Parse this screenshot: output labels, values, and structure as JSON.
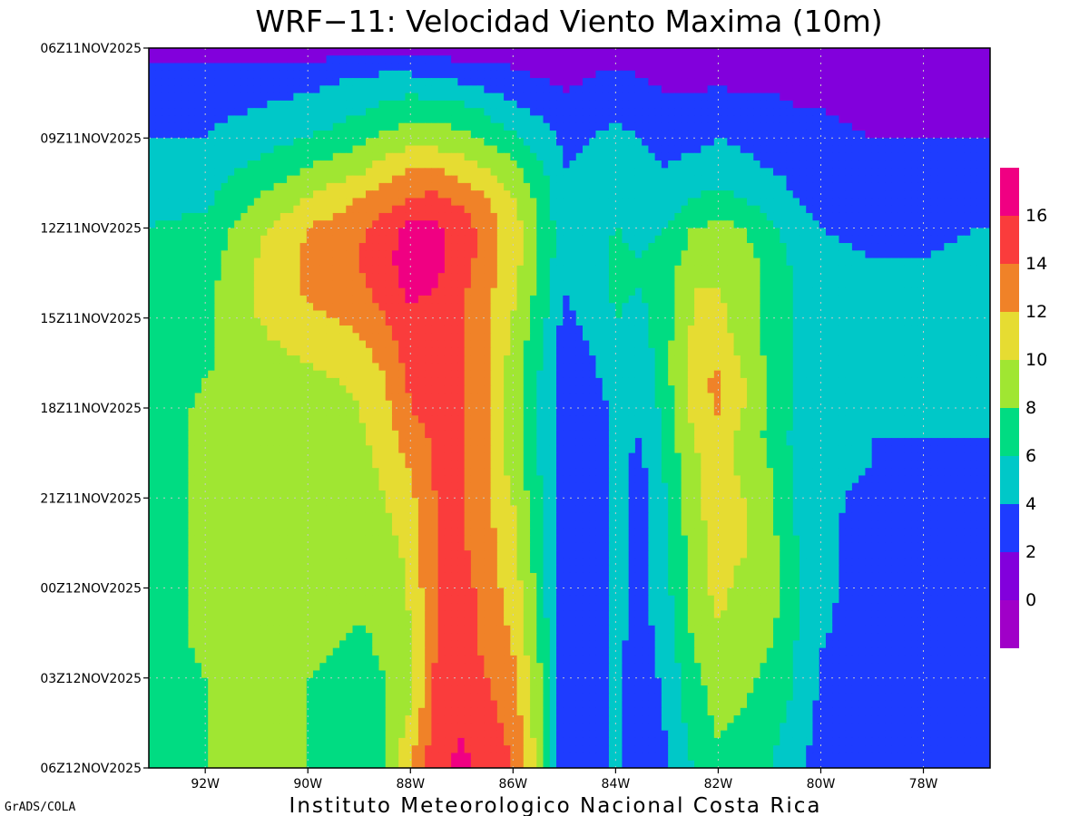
{
  "chart_data": {
    "type": "heatmap",
    "title": "WRF−11: Velocidad  Viento Maxima (10m)",
    "xlabel": "",
    "ylabel": "",
    "x_ticks": [
      "92W",
      "90W",
      "88W",
      "86W",
      "84W",
      "82W",
      "80W",
      "78W"
    ],
    "x_tick_values": [
      -92,
      -90,
      -88,
      -86,
      -84,
      -82,
      -80,
      -78
    ],
    "xlim": [
      -93.1,
      -76.7
    ],
    "y_ticks": [
      "06Z11NOV2025",
      "09Z11NOV2025",
      "12Z11NOV2025",
      "15Z11NOV2025",
      "18Z11NOV2025",
      "21Z11NOV2025",
      "00Z12NOV2025",
      "03Z12NOV2025",
      "06Z12NOV2025"
    ],
    "y_tick_hours": [
      0,
      3,
      6,
      9,
      12,
      15,
      18,
      21,
      24
    ],
    "ylim_hours": [
      0,
      24
    ],
    "grid": true,
    "colorbar": {
      "placement": "right",
      "labels": [
        "16",
        "14",
        "12",
        "10",
        "8",
        "6",
        "4",
        "2",
        "0"
      ],
      "levels": [
        0,
        2,
        4,
        6,
        8,
        10,
        12,
        14,
        16
      ],
      "colors": [
        "#a000c8",
        "#8200dc",
        "#1e3cff",
        "#00c8c8",
        "#00dc82",
        "#a0e632",
        "#e6dc32",
        "#f08228",
        "#fa3c3c",
        "#f00082"
      ]
    },
    "field": {
      "units": "m/s",
      "x_nodes": [
        -93.1,
        -92,
        -91,
        -90,
        -89,
        -88.5,
        -88,
        -87.5,
        -87,
        -86.5,
        -86,
        -85.5,
        -85,
        -84.5,
        -84,
        -83.5,
        -83,
        -82.5,
        -82,
        -81.5,
        -81,
        -80.5,
        -80,
        -79,
        -78,
        -77,
        -76.7
      ],
      "rows": [
        {
          "hour": 0,
          "values": [
            1,
            1,
            1,
            1,
            1,
            1,
            1,
            1,
            1,
            1,
            1,
            1,
            1,
            1,
            1,
            1,
            1,
            1,
            1,
            1,
            1,
            1,
            1,
            1,
            1,
            1,
            1
          ]
        },
        {
          "hour": 1,
          "values": [
            3,
            3,
            3,
            3.5,
            4,
            4.5,
            4.5,
            4,
            3.5,
            3,
            2.5,
            2,
            1.5,
            2,
            2.5,
            2,
            1.5,
            1.5,
            1.5,
            1.5,
            1.5,
            1.5,
            1,
            1,
            1,
            1,
            1
          ]
        },
        {
          "hour": 2,
          "values": [
            3.5,
            3.5,
            4,
            4.5,
            5.5,
            6.5,
            7,
            7,
            6.5,
            5.5,
            4.5,
            3.5,
            2.5,
            3,
            3.5,
            3,
            2.5,
            2.5,
            3,
            2.5,
            2.5,
            2,
            2,
            1.5,
            1.5,
            1.5,
            1.5
          ]
        },
        {
          "hour": 3,
          "values": [
            4,
            4,
            5,
            6,
            7.5,
            8.5,
            9,
            9,
            8.5,
            7.5,
            6.5,
            5,
            3.5,
            4,
            4.5,
            4,
            3.5,
            3.5,
            4,
            3.5,
            3,
            3,
            2.5,
            2,
            2,
            2,
            2
          ]
        },
        {
          "hour": 4,
          "values": [
            5,
            5,
            6.5,
            8,
            9.5,
            11,
            12,
            12,
            11,
            10,
            8.5,
            6.5,
            4,
            4.5,
            5,
            4.5,
            4,
            4.5,
            5,
            4.5,
            4,
            3.5,
            3,
            2.5,
            2.5,
            3,
            3
          ]
        },
        {
          "hour": 5,
          "values": [
            5.5,
            5.5,
            8,
            10,
            12,
            13,
            14,
            14.5,
            13.5,
            12,
            10,
            7.5,
            4.5,
            5,
            5.5,
            5,
            5,
            6,
            6.5,
            6,
            5,
            4,
            3.5,
            3,
            3,
            3.5,
            3.5
          ]
        },
        {
          "hour": 6,
          "values": [
            6,
            6.5,
            9.5,
            12,
            13.5,
            15,
            16.5,
            16.5,
            15,
            13,
            11,
            8,
            4.5,
            5,
            6,
            5.5,
            6,
            8,
            8.5,
            8,
            6.5,
            5,
            4,
            3.5,
            3.5,
            4,
            4
          ]
        },
        {
          "hour": 7,
          "values": [
            6.5,
            7,
            10,
            12.5,
            14,
            15.5,
            17,
            16.5,
            15,
            13,
            11,
            8,
            4.5,
            5,
            6.5,
            6,
            7,
            9,
            9.5,
            9,
            7,
            5.5,
            4.5,
            4,
            4,
            4.5,
            4.5
          ]
        },
        {
          "hour": 8,
          "values": [
            6.5,
            7.5,
            10,
            12.5,
            13.5,
            15,
            16.5,
            16,
            14.5,
            12.5,
            10.5,
            7.5,
            4,
            5,
            6.5,
            6,
            7.5,
            10,
            10,
            9,
            7.5,
            6,
            5,
            4.5,
            4.5,
            4.5,
            4.5
          ]
        },
        {
          "hour": 9,
          "values": [
            6.5,
            7.5,
            10,
            11.5,
            12.5,
            14,
            15.5,
            15.5,
            14,
            12,
            10,
            7,
            3.5,
            4.5,
            6,
            5.5,
            7.5,
            10,
            10.5,
            9,
            7.5,
            6,
            5,
            4.5,
            4.5,
            4.5,
            4.5
          ]
        },
        {
          "hour": 10,
          "values": [
            6.5,
            7.5,
            9.5,
            10.5,
            11.5,
            13,
            15,
            15,
            14,
            12,
            9.5,
            6.5,
            3,
            4,
            5.5,
            5,
            7.5,
            10.5,
            11,
            9.5,
            7.5,
            6,
            5,
            4.5,
            4.5,
            4.5,
            4.5
          ]
        },
        {
          "hour": 11,
          "values": [
            6.5,
            8,
            9,
            9.5,
            10.5,
            12,
            14.5,
            15,
            14,
            12,
            9,
            6,
            3,
            3.5,
            5,
            4.5,
            7.5,
            11,
            12.5,
            10,
            7.5,
            6,
            5,
            4.5,
            4.5,
            4.5,
            4.5
          ]
        },
        {
          "hour": 12,
          "values": [
            6.5,
            8.5,
            9,
            9,
            10,
            11.5,
            14,
            15,
            14,
            12,
            9,
            6,
            3,
            3,
            4.5,
            4,
            7,
            10.5,
            12.5,
            10,
            7.5,
            6,
            5,
            4.5,
            4,
            4,
            4
          ]
        },
        {
          "hour": 13,
          "values": [
            6.5,
            8.5,
            9,
            9,
            9.5,
            11,
            13,
            14.5,
            14,
            12,
            9,
            6,
            3,
            3,
            4.5,
            4,
            7,
            10,
            11,
            9.5,
            7.5,
            5.5,
            4.5,
            4,
            4,
            4,
            4
          ]
        },
        {
          "hour": 14,
          "values": [
            6.5,
            8.5,
            9,
            9,
            9,
            10.5,
            12,
            14.5,
            14,
            12,
            9,
            6,
            2.5,
            3,
            4.5,
            3.5,
            6.5,
            9.5,
            10.5,
            9.5,
            8,
            6,
            4.5,
            4,
            3.5,
            3.5,
            3.5
          ]
        },
        {
          "hour": 15,
          "values": [
            6.5,
            8.5,
            9,
            9,
            9,
            10,
            11.5,
            14,
            14,
            12.5,
            10,
            6.5,
            2.5,
            3,
            4.5,
            3.5,
            6,
            9.5,
            11.5,
            10,
            8.5,
            6,
            4.5,
            3.5,
            3,
            3,
            3
          ]
        },
        {
          "hour": 16,
          "values": [
            6.5,
            8.5,
            9,
            9,
            9,
            9.5,
            11,
            14,
            14,
            12.5,
            10.5,
            7,
            2.5,
            3,
            4.5,
            3.5,
            6,
            9,
            11,
            10,
            8.5,
            6,
            4.5,
            3,
            3,
            3,
            3
          ]
        },
        {
          "hour": 17,
          "values": [
            6.5,
            8.5,
            9,
            9,
            8.5,
            9,
            10.5,
            14,
            14.5,
            13,
            11,
            7,
            2.5,
            3,
            4.5,
            3.5,
            5.5,
            9,
            10.5,
            10,
            9,
            6.5,
            4.5,
            3,
            2.5,
            2.5,
            2.5
          ]
        },
        {
          "hour": 18,
          "values": [
            6.5,
            8.5,
            9,
            9,
            8.5,
            9,
            10.5,
            14,
            15,
            13,
            11,
            7.5,
            2.5,
            3,
            4.5,
            3.5,
            5.5,
            9,
            10.5,
            9.5,
            9,
            6.5,
            4.5,
            3,
            2.5,
            2.5,
            2.5
          ]
        },
        {
          "hour": 19,
          "values": [
            6.5,
            8.5,
            9,
            9,
            8,
            8.5,
            10,
            14,
            15,
            13,
            11.5,
            7.5,
            2.5,
            3,
            4.5,
            3.5,
            5,
            8.5,
            10,
            9.5,
            8.5,
            6.5,
            4.5,
            2.5,
            2.5,
            2.5,
            2.5
          ]
        },
        {
          "hour": 20,
          "values": [
            6.5,
            8.5,
            9,
            8.5,
            7.5,
            8.5,
            10,
            14,
            15,
            13.5,
            12,
            8,
            2.5,
            3,
            4.5,
            3,
            5,
            8,
            9.5,
            9,
            8,
            6,
            4,
            2.5,
            2.5,
            2.5,
            2.5
          ]
        },
        {
          "hour": 21,
          "values": [
            6.5,
            8,
            8.5,
            8,
            7,
            8,
            10,
            14.5,
            15,
            14,
            12.5,
            8.5,
            2.5,
            3,
            4.5,
            3,
            4.5,
            7.5,
            9,
            8.5,
            7.5,
            6,
            4,
            2.5,
            2.5,
            2.5,
            2.5
          ]
        },
        {
          "hour": 22,
          "values": [
            6.5,
            8,
            8.5,
            8,
            7,
            8,
            10,
            14.5,
            15.5,
            14.5,
            13,
            9,
            2.5,
            3,
            4.5,
            3,
            4.5,
            7,
            8.5,
            8,
            7,
            5.5,
            3.5,
            2.5,
            2.5,
            2.5,
            2.5
          ]
        },
        {
          "hour": 23,
          "values": [
            6.5,
            8,
            8.5,
            8,
            7,
            8,
            11,
            15,
            16,
            15,
            13.5,
            9,
            2.5,
            3,
            4.5,
            3,
            4,
            6.5,
            8,
            7.5,
            6.5,
            5,
            3.5,
            2.5,
            2.5,
            2.5,
            2.5
          ]
        },
        {
          "hour": 24,
          "values": [
            6.5,
            8,
            8.5,
            8,
            7,
            8,
            12,
            15.5,
            16.5,
            15.5,
            14,
            9.5,
            2.5,
            3,
            4.5,
            3,
            4,
            6,
            7.5,
            7,
            6,
            4.5,
            3,
            2.5,
            2.5,
            2.5,
            2.5
          ]
        }
      ]
    }
  },
  "footer": {
    "credit": "GrADS/COLA",
    "institution": "Instituto Meteorologico Nacional Costa Rica"
  }
}
